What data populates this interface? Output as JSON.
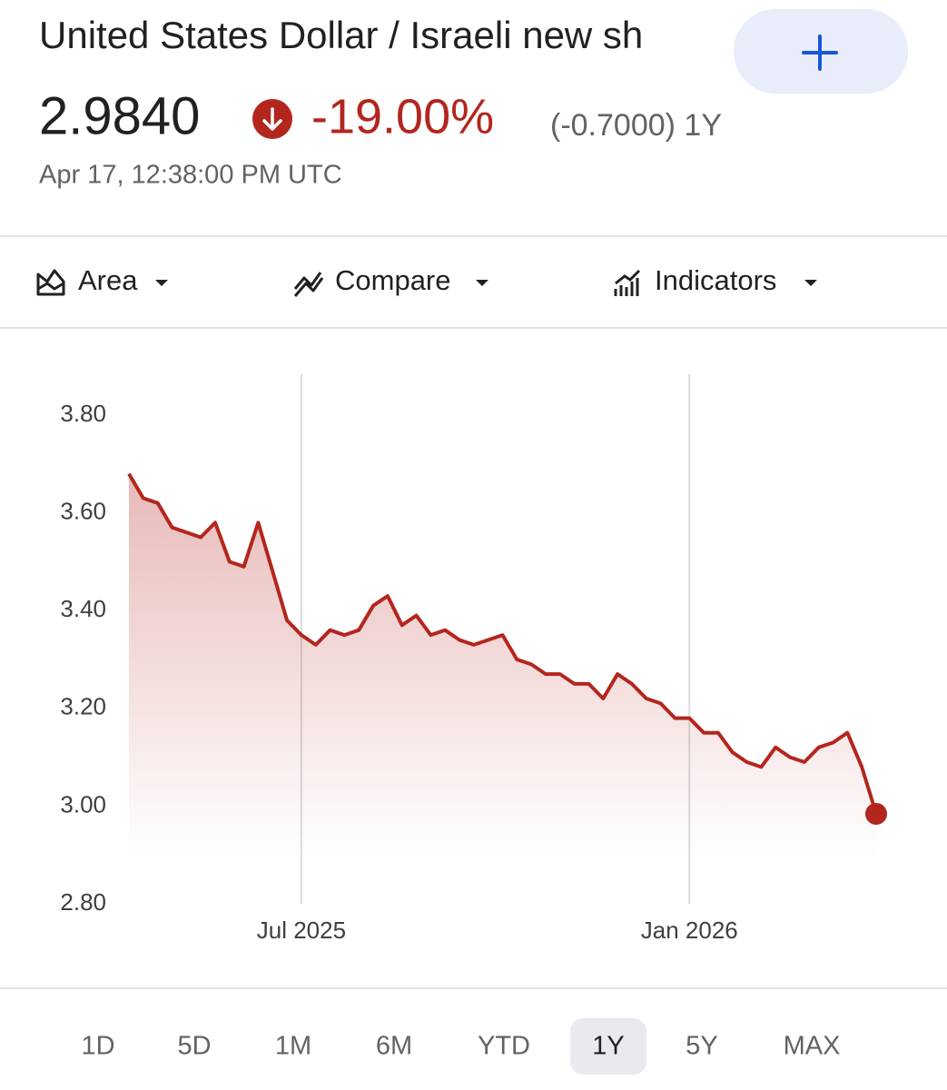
{
  "header": {
    "title": "United States Dollar / Israeli new sh",
    "price": "2.9840",
    "change_percent": "-19.00%",
    "change_detail": "(-0.7000) 1Y",
    "timestamp": "Apr 17, 12:38:00 PM UTC"
  },
  "toolbar": [
    "Area",
    "Compare",
    "Indicators"
  ],
  "chart_data": {
    "type": "line",
    "color": "#b3261e",
    "categories": [
      null,
      null,
      null,
      null,
      null,
      null,
      null,
      null,
      null,
      null,
      null,
      null,
      "Jul 2025",
      null,
      null,
      null,
      null,
      null,
      null,
      null,
      null,
      null,
      null,
      null,
      null,
      null,
      null,
      null,
      null,
      null,
      null,
      null,
      null,
      null,
      null,
      null,
      null,
      null,
      null,
      "Jan 2026",
      null,
      null,
      null,
      null,
      null,
      null,
      null,
      null,
      null,
      null,
      null,
      null,
      null
    ],
    "values": [
      3.68,
      3.63,
      3.62,
      3.57,
      3.56,
      3.55,
      3.58,
      3.5,
      3.49,
      3.58,
      3.48,
      3.38,
      3.35,
      3.33,
      3.36,
      3.35,
      3.36,
      3.41,
      3.43,
      3.37,
      3.39,
      3.35,
      3.36,
      3.34,
      3.33,
      3.34,
      3.35,
      3.3,
      3.29,
      3.27,
      3.27,
      3.25,
      3.25,
      3.22,
      3.27,
      3.25,
      3.22,
      3.21,
      3.18,
      3.18,
      3.15,
      3.15,
      3.11,
      3.09,
      3.08,
      3.12,
      3.1,
      3.09,
      3.12,
      3.13,
      3.15,
      3.08,
      2.984
    ],
    "ylim": [
      2.8,
      3.8
    ],
    "yticks": [
      {
        "value": 2.8,
        "label": "2.80"
      },
      {
        "value": 3.0,
        "label": "3.00"
      },
      {
        "value": 3.2,
        "label": "3.20"
      },
      {
        "value": 3.4,
        "label": "3.40"
      },
      {
        "value": 3.6,
        "label": "3.60"
      },
      {
        "value": 3.8,
        "label": "3.80"
      }
    ],
    "area": true
  },
  "ranges": [
    "1D",
    "5D",
    "1M",
    "6M",
    "YTD",
    "1Y",
    "5Y",
    "MAX"
  ],
  "selected_range": "1Y"
}
